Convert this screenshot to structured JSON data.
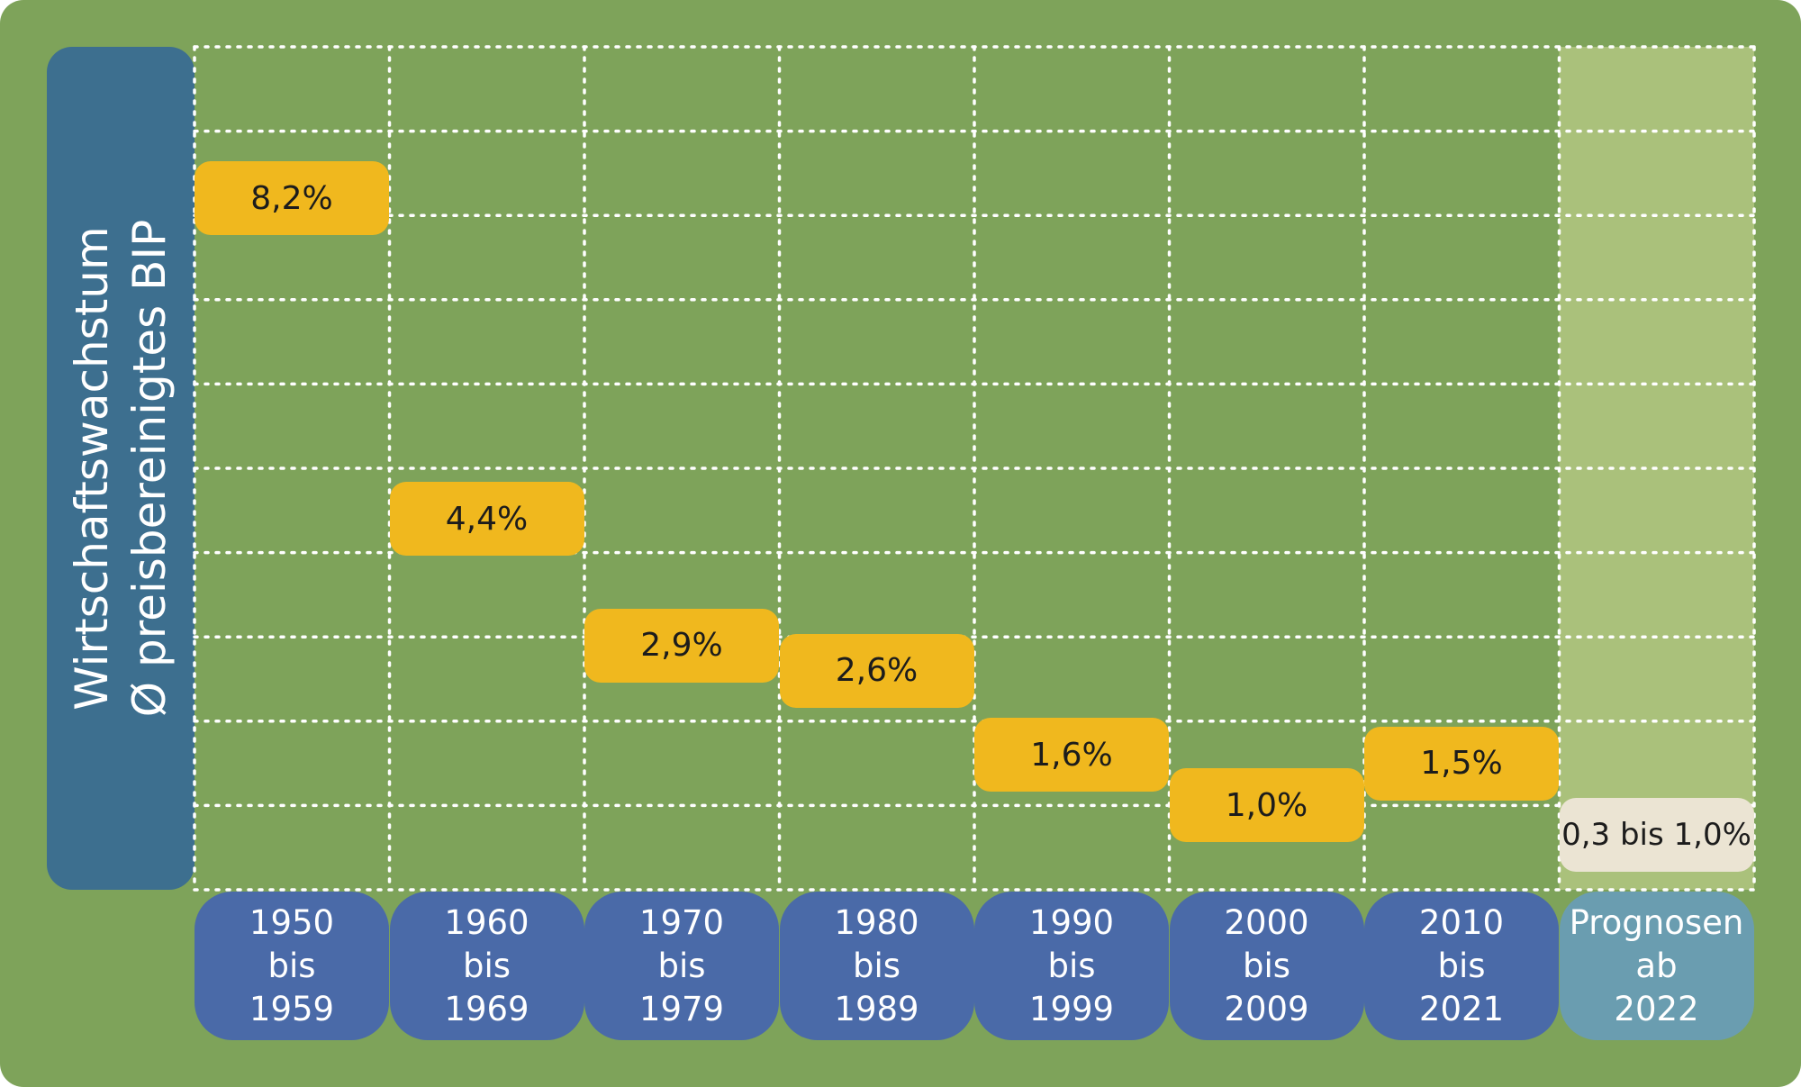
{
  "chart_data": {
    "type": "bar",
    "ylabel_lines": [
      "Wirtschaftswachstum",
      "Ø preisbereinigtes BIP"
    ],
    "ylim": [
      0,
      10
    ],
    "categories": [
      {
        "lines": [
          "1950",
          "bis",
          "1959"
        ],
        "label": "8,2%",
        "value": 8.2,
        "forecast": false
      },
      {
        "lines": [
          "1960",
          "bis",
          "1969"
        ],
        "label": "4,4%",
        "value": 4.4,
        "forecast": false
      },
      {
        "lines": [
          "1970",
          "bis",
          "1979"
        ],
        "label": "2,9%",
        "value": 2.9,
        "forecast": false
      },
      {
        "lines": [
          "1980",
          "bis",
          "1989"
        ],
        "label": "2,6%",
        "value": 2.6,
        "forecast": false
      },
      {
        "lines": [
          "1990",
          "bis",
          "1999"
        ],
        "label": "1,6%",
        "value": 1.6,
        "forecast": false
      },
      {
        "lines": [
          "2000",
          "bis",
          "2009"
        ],
        "label": "1,0%",
        "value": 1.0,
        "forecast": false
      },
      {
        "lines": [
          "2010",
          "bis",
          "2021"
        ],
        "label": "1,5%",
        "value": 1.5,
        "forecast": false
      },
      {
        "lines": [
          "Prognosen",
          "ab",
          "2022"
        ],
        "label": "0,3 bis 1,0%",
        "value": 0.65,
        "range": [
          0.3,
          1.0
        ],
        "forecast": true
      }
    ]
  },
  "colors": {
    "background": "#7ea35a",
    "ylabel_box": "#3d6f8f",
    "category_box": "#4a6aa8",
    "forecast_box": "#6a9db0",
    "value_box": "#f0b81e",
    "forecast_value_box": "#ebe4d3",
    "forecast_column": "#aac17b",
    "grid": "#ffffff"
  }
}
